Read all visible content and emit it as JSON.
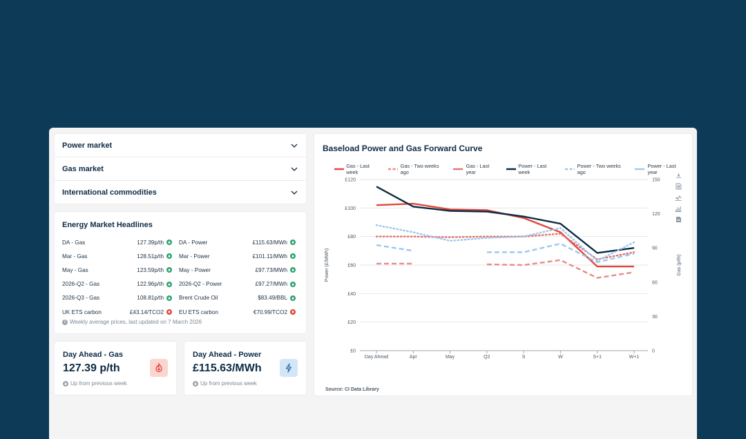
{
  "accordion": [
    {
      "label": "Power market"
    },
    {
      "label": "Gas market"
    },
    {
      "label": "International commodities"
    }
  ],
  "headlines": {
    "title": "Energy Market Headlines",
    "rows": [
      [
        {
          "name": "DA - Gas",
          "value": "127.39p/th",
          "dir": "up"
        },
        {
          "name": "DA - Power",
          "value": "£115.63/MWh",
          "dir": "up"
        }
      ],
      [
        {
          "name": "Mar - Gas",
          "value": "128.51p/th",
          "dir": "up"
        },
        {
          "name": "Mar - Power",
          "value": "£101.11/MWh",
          "dir": "up"
        }
      ],
      [
        {
          "name": "May - Gas",
          "value": "123.59p/th",
          "dir": "up"
        },
        {
          "name": "May - Power",
          "value": "£97.73/MWh",
          "dir": "up"
        }
      ],
      [
        {
          "name": "2026-Q2 - Gas",
          "value": "122.96p/th",
          "dir": "up"
        },
        {
          "name": "2026-Q2 - Power",
          "value": "£97.27/MWh",
          "dir": "up"
        }
      ],
      [
        {
          "name": "2026-Q3 - Gas",
          "value": "108.81p/th",
          "dir": "up"
        },
        {
          "name": "Brent Crude Oil",
          "value": "$83.49/BBL",
          "dir": "up"
        }
      ],
      [
        {
          "name": "UK ETS carbon",
          "value": "£43.14/TCO2",
          "dir": "down"
        },
        {
          "name": "EU ETS carbon",
          "value": "€70.99/TCO2",
          "dir": "down"
        }
      ]
    ],
    "note": "Weekly average prices, last updated on 7 March 2026"
  },
  "kpi_gas": {
    "title": "Day Ahead - Gas",
    "value": "127.39 p/th",
    "note": "Up from previous week",
    "icon": "flame-icon",
    "icon_bg": "#fbd5cf",
    "icon_color": "#e0473a"
  },
  "kpi_power": {
    "title": "Day Ahead - Power",
    "value": "£115.63/MWh",
    "note": "Up from previous week",
    "icon": "lightning-icon",
    "icon_bg": "#d3e6f8",
    "icon_color": "#2b6cb0"
  },
  "chart_data": {
    "type": "line",
    "title": "Baseload Power and Gas Forward Curve",
    "source": "Source: CI Data Library",
    "categories": [
      "Day Ahead",
      "Apr",
      "May",
      "Q2",
      "S",
      "W",
      "S+1",
      "W+1"
    ],
    "ylabel_left": "Power (£/MWh)",
    "ylabel_right": "Gas (p/th)",
    "ylim_left": [
      0,
      120
    ],
    "ylim_right": [
      0,
      150
    ],
    "yticks_left": [
      "£0",
      "£20",
      "£40",
      "£60",
      "£80",
      "£100",
      "£120"
    ],
    "yticks_right": [
      "0",
      "30",
      "60",
      "90",
      "120",
      "150"
    ],
    "series": [
      {
        "name": "Gas - Last week",
        "axis": "left",
        "color": "#e0473a",
        "style": "solid",
        "values": [
          102,
          103,
          99,
          98.5,
          93,
          83,
          59,
          59
        ]
      },
      {
        "name": "Gas - Two weeks ago",
        "axis": "left",
        "color": "#e88a85",
        "style": "dashed",
        "values": [
          61,
          61,
          null,
          60.5,
          60,
          63.5,
          51,
          55
        ]
      },
      {
        "name": "Gas - Last year",
        "axis": "left",
        "color": "#e0706a",
        "style": "dotted",
        "values": [
          80,
          80,
          79.5,
          80,
          80,
          82,
          64,
          69
        ]
      },
      {
        "name": "Power - Last week",
        "axis": "left",
        "color": "#0d2b45",
        "style": "solid",
        "values": [
          115,
          101,
          98,
          97.5,
          94,
          89,
          68.5,
          72
        ]
      },
      {
        "name": "Power - Two weeks ago",
        "axis": "left",
        "color": "#9cc6ee",
        "style": "dashed",
        "values": [
          74,
          70,
          null,
          69,
          69,
          75,
          62,
          68
        ]
      },
      {
        "name": "Power - Last year",
        "axis": "left",
        "color": "#9cc6ee",
        "style": "dotted",
        "values": [
          88,
          83,
          77,
          79,
          80,
          86,
          63,
          76
        ]
      }
    ]
  }
}
